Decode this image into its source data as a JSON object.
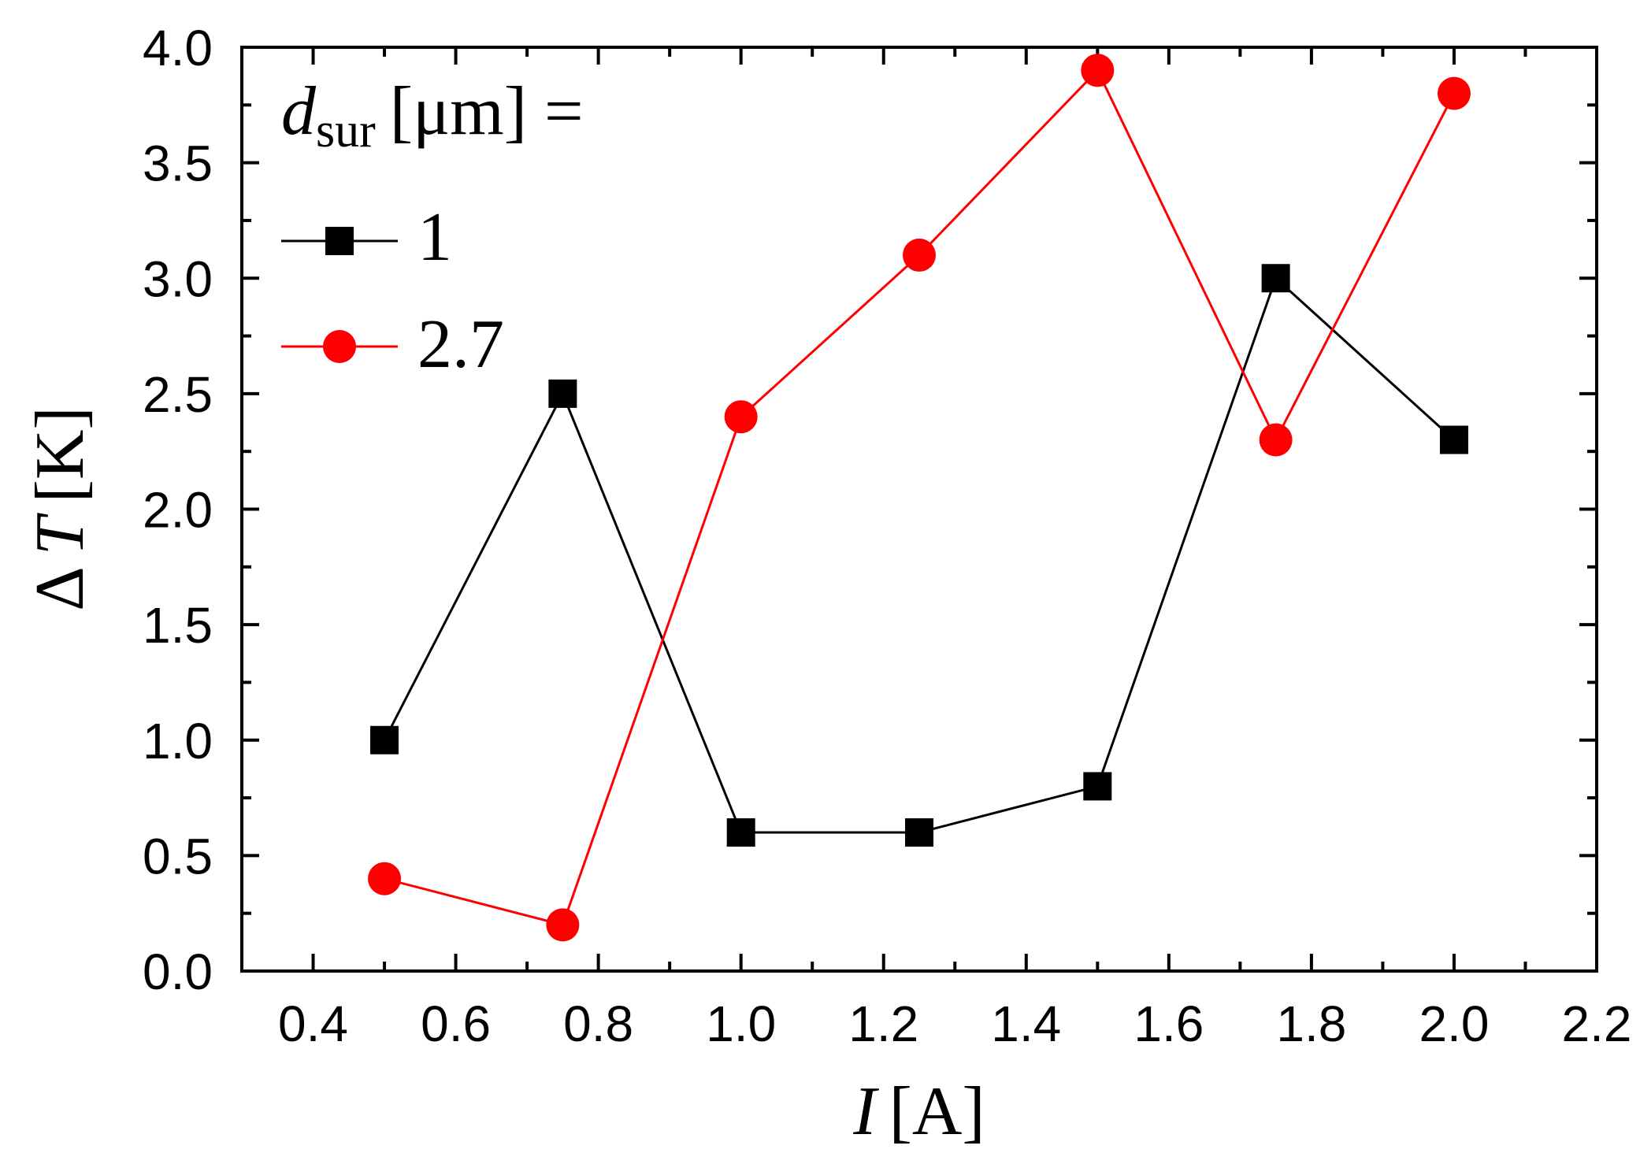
{
  "chart_data": {
    "type": "line",
    "title": "",
    "xlabel": {
      "symbol": "I",
      "unit": "[A]"
    },
    "ylabel": {
      "symbol": "T",
      "prefix": "Δ",
      "unit": "[K]"
    },
    "xlim": [
      0.3,
      2.2
    ],
    "ylim": [
      0.0,
      4.0
    ],
    "xticks": [
      0.4,
      0.6,
      0.8,
      1.0,
      1.2,
      1.4,
      1.6,
      1.8,
      2.0,
      2.2
    ],
    "xtick_labels": [
      "0.4",
      "0.6",
      "0.8",
      "1.0",
      "1.2",
      "1.4",
      "1.6",
      "1.8",
      "2.0",
      "2.2"
    ],
    "yticks": [
      0.0,
      0.5,
      1.0,
      1.5,
      2.0,
      2.5,
      3.0,
      3.5,
      4.0
    ],
    "ytick_labels": [
      "0.0",
      "0.5",
      "1.0",
      "1.5",
      "2.0",
      "2.5",
      "3.0",
      "3.5",
      "4.0"
    ],
    "grid": false,
    "legend": {
      "position": "top-left",
      "title_symbol": "d",
      "title_subscript": "sur",
      "title_rest": "[μm] ="
    },
    "x": [
      0.5,
      0.75,
      1.0,
      1.25,
      1.5,
      1.75,
      2.0
    ],
    "series": [
      {
        "name": "1",
        "marker": "square",
        "color": "#000000",
        "values": [
          1.0,
          2.5,
          0.6,
          0.6,
          0.8,
          3.0,
          2.3
        ]
      },
      {
        "name": "2.7",
        "marker": "circle",
        "color": "#ff0000",
        "values": [
          0.4,
          0.2,
          2.4,
          3.1,
          3.9,
          2.3,
          3.8
        ]
      }
    ]
  }
}
